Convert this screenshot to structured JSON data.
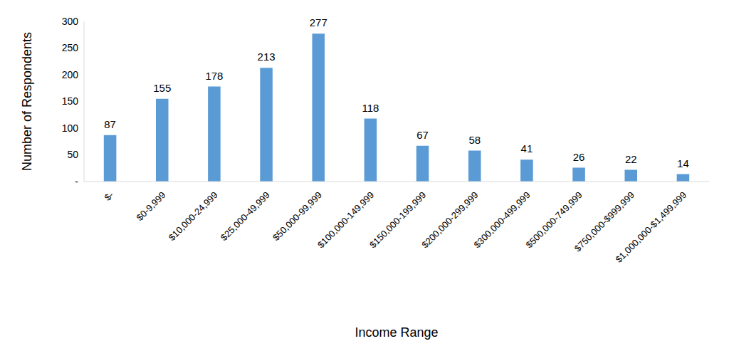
{
  "chart_data": {
    "type": "bar",
    "x_label": "Income Range",
    "y_label": "Number of Respondents",
    "categories": [
      "$-",
      "$0-9,999",
      "$10,000-24,999",
      "$25,000-49,999",
      "$50,000-99,999",
      "$100,000-149,999",
      "$150,000-199,999",
      "$200,000-299,999",
      "$300,000-499,999",
      "$500,000-749,999",
      "$750,000-$999,999",
      "$1,000,000-$1,499,999"
    ],
    "values": [
      87,
      155,
      178,
      213,
      277,
      118,
      67,
      58,
      41,
      26,
      22,
      14
    ],
    "color": "#5b9bd5",
    "ylim": [
      0,
      300
    ],
    "yticks": [
      {
        "value": 0,
        "label": "-"
      },
      50,
      100,
      150,
      200,
      250,
      300
    ],
    "grid": false,
    "data_labels": true
  }
}
